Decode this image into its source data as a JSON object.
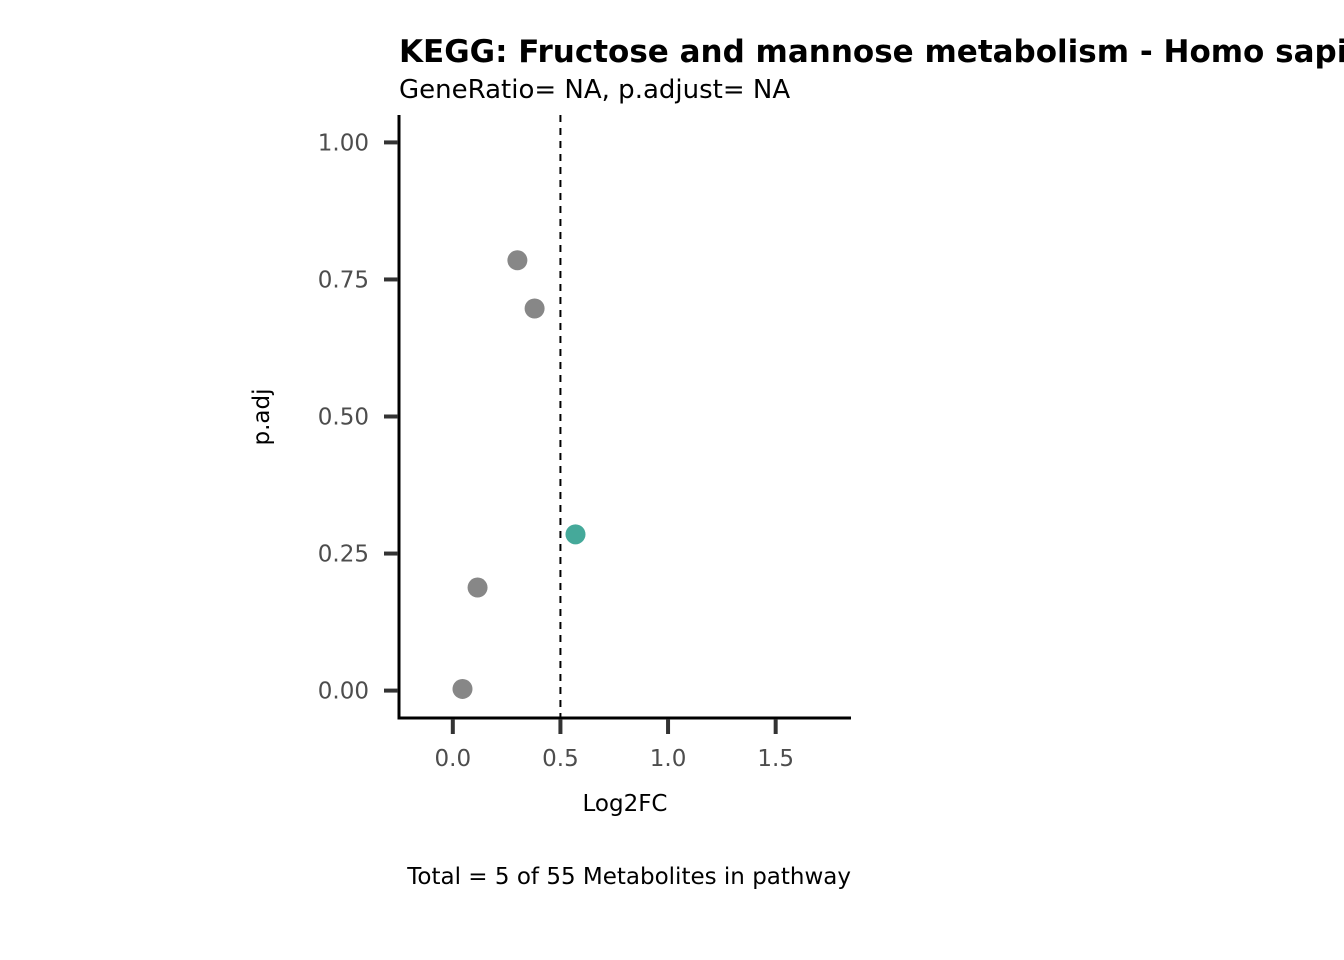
{
  "chart_data": {
    "type": "scatter",
    "title": "KEGG: Fructose and mannose metabolism - Homo sapiens (human)",
    "subtitle": "GeneRatio= NA, p.adjust= NA",
    "xlabel": "Log2FC",
    "ylabel": "p.adj",
    "caption": "Total = 5 of 55 Metabolites in pathway",
    "xlim": [
      -0.25,
      1.85
    ],
    "ylim": [
      -0.05,
      1.05
    ],
    "x_ticks": [
      0.0,
      0.5,
      1.0,
      1.5
    ],
    "x_tick_labels": [
      "0.0",
      "0.5",
      "1.0",
      "1.5"
    ],
    "y_ticks": [
      0.0,
      0.25,
      0.5,
      0.75,
      1.0
    ],
    "y_tick_labels": [
      "0.00",
      "0.25",
      "0.50",
      "0.75",
      "1.00"
    ],
    "grid": false,
    "legend": "none",
    "threshold_line": {
      "x": 0.5,
      "style": "dashed"
    },
    "colors": {
      "not_significant": "#878787",
      "significant": "#45a99a"
    },
    "points": [
      {
        "x": 0.3,
        "y": 0.785,
        "group": "not_significant"
      },
      {
        "x": 0.38,
        "y": 0.697,
        "group": "not_significant"
      },
      {
        "x": 0.57,
        "y": 0.285,
        "group": "significant"
      },
      {
        "x": 0.115,
        "y": 0.188,
        "group": "not_significant"
      },
      {
        "x": 0.045,
        "y": 0.003,
        "group": "not_significant"
      }
    ]
  }
}
